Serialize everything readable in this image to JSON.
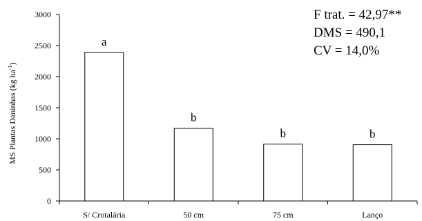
{
  "chart_data": {
    "type": "bar",
    "categories": [
      "S/ Crotalária",
      "50 cm",
      "75 cm",
      "Lanço"
    ],
    "values": [
      2390,
      1170,
      915,
      905
    ],
    "significance_letters": [
      "a",
      "b",
      "b",
      "b"
    ],
    "ylabel_main": "MS Plantas Daninhas (kg ha",
    "ylabel_sup": "-1",
    "ylabel_close": ")",
    "ylim": [
      0,
      3000
    ],
    "yticks": [
      0,
      500,
      1000,
      1500,
      2000,
      2500,
      3000
    ],
    "ytick_labels": [
      "0",
      "500",
      "1000",
      "1500",
      "2000",
      "2500",
      "3000"
    ],
    "grid": false,
    "bar_fill": "#ffffff",
    "bar_stroke": "#000000",
    "stats": [
      "F trat. = 42,97**",
      "DMS = 490,1",
      "CV = 14,0%"
    ]
  }
}
